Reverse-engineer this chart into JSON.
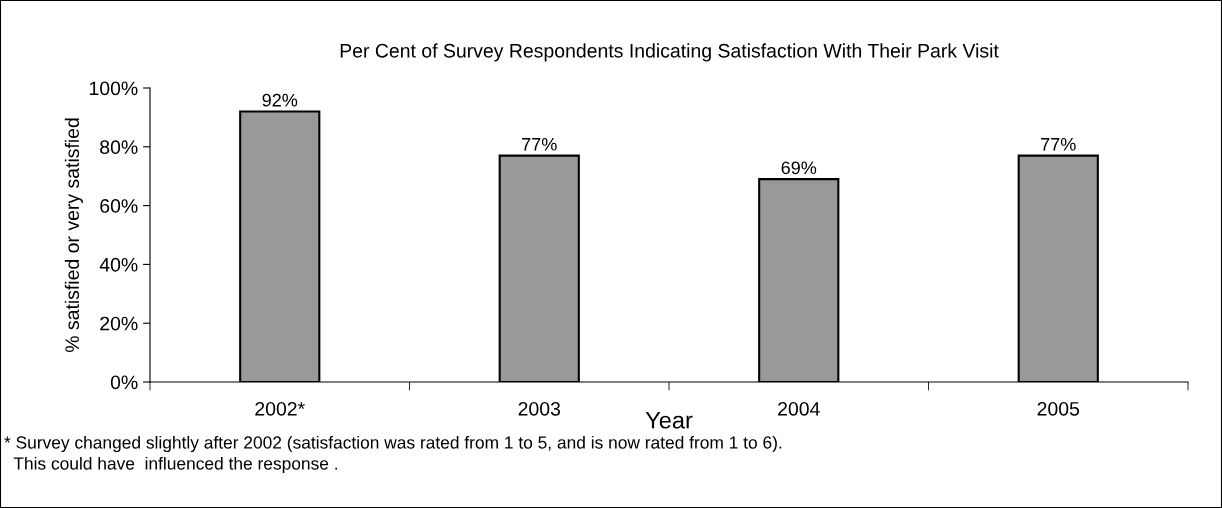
{
  "chart_data": {
    "type": "bar",
    "title": "Per Cent of Survey Respondents Indicating Satisfaction With Their Park Visit",
    "xlabel": "Year",
    "ylabel": "% satisfied or very satisfied",
    "categories": [
      "2002*",
      "2003",
      "2004",
      "2005"
    ],
    "values": [
      92,
      77,
      69,
      77
    ],
    "value_labels": [
      "92%",
      "77%",
      "69%",
      "77%"
    ],
    "color": "#999999",
    "ylim": [
      0,
      100
    ],
    "yticks": [
      {
        "value": 0,
        "label": "0%"
      },
      {
        "value": 20,
        "label": "20%"
      },
      {
        "value": 40,
        "label": "40%"
      },
      {
        "value": 60,
        "label": "60%"
      },
      {
        "value": 80,
        "label": "80%"
      },
      {
        "value": 100,
        "label": "100%"
      }
    ],
    "grid": false,
    "legend": false,
    "annotations": [
      "* Survey changed slightly after 2002 (satisfaction was rated from 1 to 5, and is now rated from 1 to 6).",
      "  This could have  influenced the response ."
    ]
  }
}
